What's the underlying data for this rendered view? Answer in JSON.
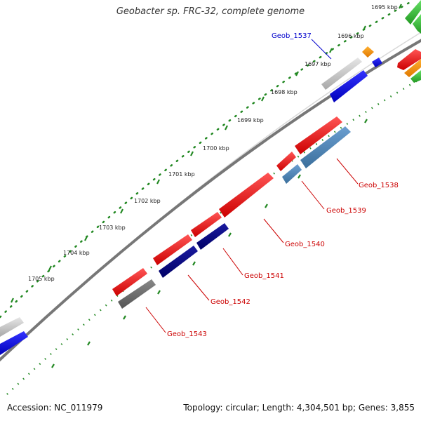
{
  "header": {
    "title": "Geobacter sp. FRC-32, complete genome"
  },
  "footer": {
    "accession": "Accession: NC_011979",
    "summary": "Topology: circular; Length: 4,304,501 bp; Genes: 3,855"
  },
  "scale_labels": [
    "1695 kbp",
    "1696 kbp",
    "1697 kbp",
    "1698 kbp",
    "1699 kbp",
    "1700 kbp",
    "1701 kbp",
    "1702 kbp",
    "1703 kbp",
    "1704 kbp",
    "1705 kbp"
  ],
  "gene_labels": [
    "Geob_1537",
    "Geob_1538",
    "Geob_1539",
    "Geob_1540",
    "Geob_1541",
    "Geob_1542",
    "Geob_1543"
  ],
  "colors": {
    "red": "#ee1111",
    "blue": "#0000ee",
    "navy": "#000080",
    "steelblue": "#4682b4",
    "gray": "#666666",
    "lightgray": "#c0c0c0",
    "orange": "#ff9900",
    "green": "#33cc33",
    "tick": "#228822",
    "ring": "#888888"
  }
}
